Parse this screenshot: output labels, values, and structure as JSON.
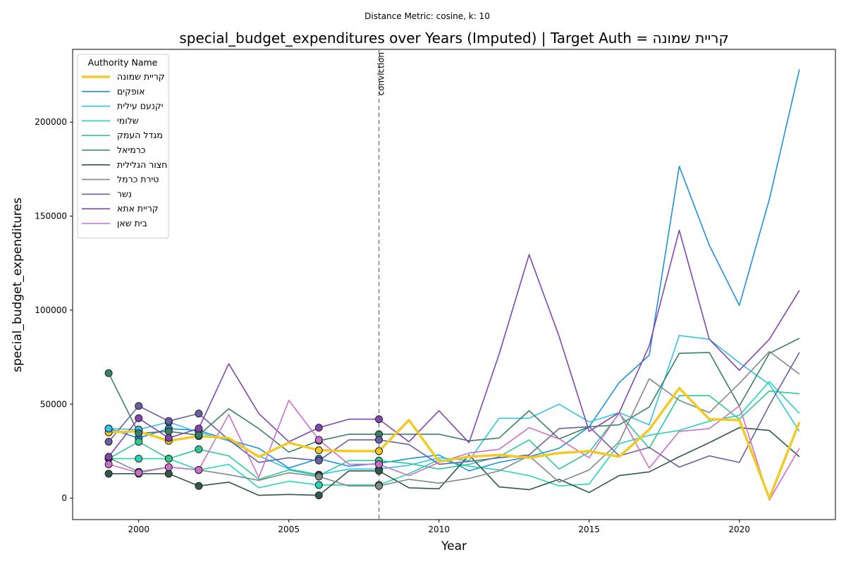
{
  "suptitle": "Distance Metric: cosine, k: 10",
  "chart_data": {
    "type": "line",
    "title": "special_budget_expenditures over Years (Imputed) | Target Auth = קריית שמונה",
    "xlabel": "Year",
    "ylabel": "special_budget_expenditures",
    "xlim": [
      1997.8,
      2023.2
    ],
    "ylim": [
      -11400,
      238700
    ],
    "xticks": [
      2000,
      2005,
      2010,
      2015,
      2020
    ],
    "yticks": [
      0,
      50000,
      100000,
      150000,
      200000
    ],
    "ytick_labels": [
      "0",
      "50000",
      "100000",
      "150000",
      "200000"
    ],
    "grid": false,
    "legend": {
      "title": "Authority Name",
      "placement": "upper-left"
    },
    "annotation": {
      "x": 2008,
      "label": "conviction",
      "style": "dashed",
      "color": "#808080"
    },
    "x": [
      1999,
      2000,
      2001,
      2002,
      2003,
      2004,
      2005,
      2006,
      2007,
      2008,
      2009,
      2010,
      2011,
      2012,
      2013,
      2014,
      2015,
      2016,
      2017,
      2018,
      2019,
      2020,
      2021,
      2022
    ],
    "series": [
      {
        "name": "קריית שמונה",
        "color": "#f2ca27",
        "target": true,
        "values": [
          35000,
          35500,
          30500,
          33000,
          32000,
          22000,
          29500,
          25500,
          25000,
          25000,
          41500,
          19500,
          22000,
          23000,
          21500,
          24000,
          25000,
          22000,
          36500,
          58500,
          42000,
          41500,
          0,
          40500
        ],
        "markers": [
          1999,
          2000,
          2001,
          2002,
          2006,
          2008
        ]
      },
      {
        "name": "אופקים",
        "color": "#1e90e0",
        "values": [
          37000,
          32000,
          37000,
          36000,
          31000,
          26500,
          16000,
          21000,
          17000,
          18500,
          21000,
          23000,
          14500,
          19000,
          22000,
          26500,
          38000,
          61500,
          76000,
          176500,
          134500,
          102500,
          159000,
          228000
        ],
        "markers": [
          1999,
          2000,
          2001,
          2002,
          2006,
          2008
        ]
      },
      {
        "name": "יקנעם עילית",
        "color": "#2fc5ea",
        "values": [
          37000,
          36500,
          40500,
          35000,
          30500,
          22500,
          15500,
          12500,
          15500,
          15500,
          17500,
          21500,
          20000,
          42500,
          42500,
          50000,
          40500,
          45500,
          39000,
          86500,
          84500,
          72000,
          60500,
          35500
        ],
        "markers": [
          1999,
          2000,
          2001,
          2002,
          2006,
          2008
        ]
      },
      {
        "name": "שלומי",
        "color": "#24d6b8",
        "values": [
          21000,
          21000,
          21000,
          15000,
          18000,
          5500,
          9000,
          7000,
          7000,
          7000,
          13000,
          20500,
          17000,
          15000,
          12000,
          6500,
          7500,
          29000,
          33500,
          36000,
          41000,
          44000,
          62000,
          45000
        ],
        "markers": [
          1999,
          2000,
          2001,
          2002,
          2006,
          2008
        ]
      },
      {
        "name": "מגדל העמק",
        "color": "#2ec98e",
        "values": [
          21000,
          30000,
          21000,
          26000,
          22500,
          10000,
          15000,
          12000,
          20000,
          20000,
          18500,
          15500,
          18000,
          22000,
          31000,
          15500,
          24500,
          45000,
          26500,
          54500,
          54500,
          42000,
          57000,
          55500
        ],
        "markers": [
          1999,
          2000,
          2001,
          2002,
          2006,
          2008
        ]
      },
      {
        "name": "כרמיאל",
        "color": "#3a8068",
        "values": [
          66500,
          34500,
          35500,
          33500,
          47500,
          37000,
          24500,
          30500,
          34000,
          34000,
          34000,
          34000,
          30500,
          32000,
          46500,
          31500,
          38000,
          39000,
          48500,
          77000,
          77500,
          49000,
          77000,
          85000
        ],
        "markers": [
          1999,
          2000,
          2001,
          2002,
          2006,
          2008
        ]
      },
      {
        "name": "חצור הגלילית",
        "color": "#2f5a4a",
        "values": [
          13000,
          13000,
          13000,
          6500,
          8500,
          1500,
          2000,
          1500,
          14500,
          14500,
          5500,
          5000,
          23000,
          6000,
          4500,
          10000,
          3000,
          12000,
          14000,
          22000,
          29500,
          37500,
          36000,
          22000
        ],
        "markers": [
          1999,
          2000,
          2001,
          2002,
          2006,
          2008
        ]
      },
      {
        "name": "טירת כרמל",
        "color": "#7f8b88",
        "values": [
          21500,
          14000,
          16500,
          15000,
          12500,
          9500,
          13500,
          11500,
          6500,
          6500,
          10000,
          8000,
          10500,
          14500,
          22500,
          8500,
          15000,
          30000,
          63500,
          52000,
          45500,
          61000,
          78000,
          66000
        ],
        "markers": [
          1999,
          2000,
          2001,
          2002,
          2006,
          2008
        ]
      },
      {
        "name": "נשר",
        "color": "#6a5fa5",
        "values": [
          30000,
          49000,
          41000,
          45000,
          31000,
          19000,
          21500,
          20000,
          31000,
          31000,
          28500,
          18000,
          19500,
          21500,
          23000,
          37000,
          38000,
          22500,
          27000,
          16500,
          22500,
          19000,
          49500,
          77500
        ],
        "markers": [
          1999,
          2000,
          2001,
          2002,
          2006,
          2008
        ]
      },
      {
        "name": "קריית אתא",
        "color": "#8346b0",
        "values": [
          22000,
          42500,
          32000,
          37000,
          71500,
          45000,
          30000,
          37500,
          42000,
          42000,
          30000,
          46500,
          29500,
          76500,
          129500,
          86000,
          35500,
          45500,
          81000,
          142500,
          84500,
          68000,
          84500,
          110500
        ],
        "markers": [
          1999,
          2000,
          2001,
          2002,
          2006,
          2008
        ]
      },
      {
        "name": "בית שאן",
        "color": "#cc6fcb",
        "values": [
          18000,
          13500,
          16500,
          15000,
          44500,
          11000,
          52000,
          31000,
          18000,
          18000,
          12000,
          19000,
          24000,
          26000,
          37500,
          31500,
          21500,
          45500,
          16000,
          35500,
          37000,
          49000,
          -1000,
          26500
        ],
        "markers": [
          1999,
          2000,
          2001,
          2002,
          2006,
          2008
        ]
      }
    ]
  }
}
